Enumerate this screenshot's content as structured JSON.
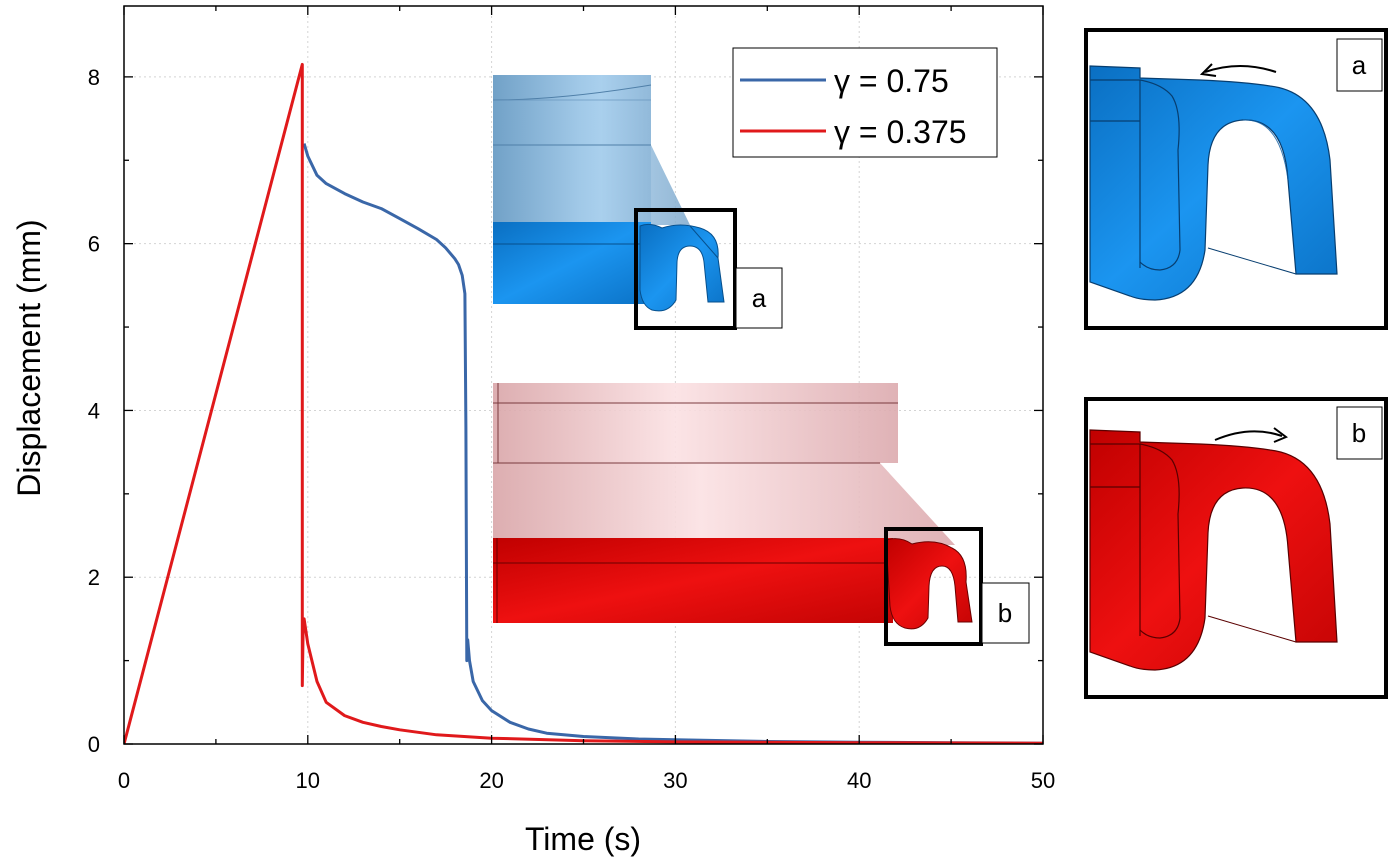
{
  "chart_data": {
    "type": "line",
    "title": "",
    "xlabel": "Time (s)",
    "ylabel": "Displacement (mm)",
    "xlim": [
      0,
      50
    ],
    "ylim": [
      0,
      8.85
    ],
    "xticks": [
      0,
      10,
      20,
      30,
      40,
      50
    ],
    "xtick_labels": [
      "0",
      "10",
      "20",
      "30",
      "40",
      "50"
    ],
    "yticks": [
      0,
      2,
      4,
      6,
      8
    ],
    "ytick_labels": [
      "0",
      "2",
      "4",
      "6",
      "8"
    ],
    "grid": true,
    "legend_position": "top-right",
    "series": [
      {
        "name": "γ = 0.75",
        "color": "#3a67a8",
        "x": [
          9.8,
          10,
          10.5,
          11,
          12,
          13,
          14,
          15,
          16,
          17,
          17.5,
          18,
          18.2,
          18.4,
          18.55,
          18.6,
          18.65,
          18.7,
          18.8,
          19,
          19.5,
          20,
          21,
          22,
          23,
          25,
          28,
          30,
          35,
          40,
          45,
          50
        ],
        "y": [
          7.2,
          7.05,
          6.82,
          6.72,
          6.6,
          6.5,
          6.42,
          6.3,
          6.18,
          6.05,
          5.95,
          5.82,
          5.75,
          5.62,
          5.4,
          3.8,
          1.0,
          1.25,
          1.0,
          0.75,
          0.52,
          0.4,
          0.26,
          0.18,
          0.13,
          0.09,
          0.06,
          0.05,
          0.03,
          0.02,
          0.015,
          0.01
        ]
      },
      {
        "name": "γ = 0.375",
        "color": "#e0191b",
        "x": [
          0,
          9.7,
          9.7,
          9.75,
          9.8,
          10,
          10.5,
          11,
          12,
          13,
          14,
          15,
          17,
          20,
          25,
          30,
          40,
          50
        ],
        "y": [
          0,
          8.15,
          0.7,
          1.45,
          1.5,
          1.2,
          0.75,
          0.5,
          0.34,
          0.26,
          0.21,
          0.17,
          0.11,
          0.07,
          0.04,
          0.025,
          0.015,
          0.01
        ]
      }
    ],
    "annotations": [
      "a",
      "b",
      "a",
      "b"
    ]
  },
  "colors": {
    "blue_series": "#3a67a8",
    "red_series": "#e0191b",
    "blue_model": "#1583dc",
    "red_model": "#dc0a0a"
  }
}
